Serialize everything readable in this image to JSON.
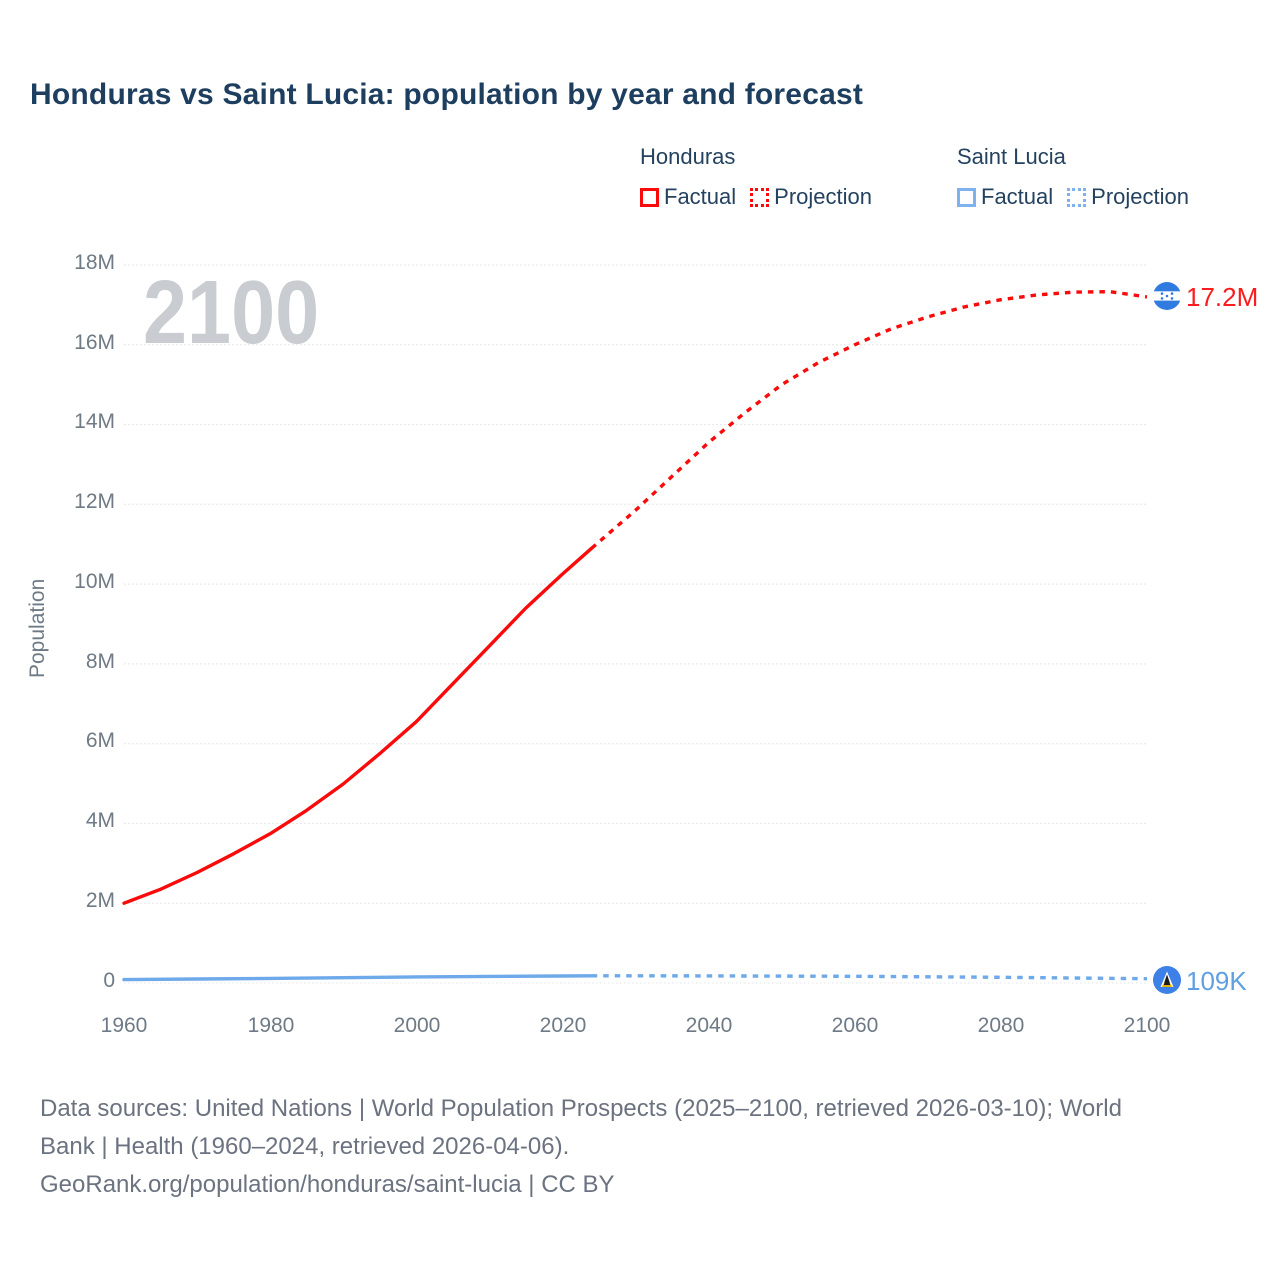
{
  "title": "Honduras vs Saint Lucia: population by year and forecast",
  "watermark": "2100",
  "legend": {
    "honduras": {
      "name": "Honduras",
      "factual_label": "Factual",
      "projection_label": "Projection"
    },
    "saint_lucia": {
      "name": "Saint Lucia",
      "factual_label": "Factual",
      "projection_label": "Projection"
    }
  },
  "colors": {
    "honduras_line": "#fa0a0a",
    "saint_lucia_line": "#6ea9ea",
    "honduras_label": "#fb1d1d",
    "saint_lucia_label": "#5f9fe2",
    "gridline": "#e3e5e7",
    "title_text": "#1d3e5e",
    "axis_text": "#6e7a85",
    "watermark_text": "#c9cdd1"
  },
  "end_labels": {
    "honduras": "17.2M",
    "saint_lucia": "109K"
  },
  "axes": {
    "y_title": "Population",
    "y_tick_labels": [
      "18M",
      "16M",
      "14M",
      "12M",
      "10M",
      "8M",
      "6M",
      "4M",
      "2M",
      "0"
    ],
    "x_tick_labels": [
      "1960",
      "1980",
      "2000",
      "2020",
      "2040",
      "2060",
      "2080",
      "2100"
    ]
  },
  "chart_data": {
    "type": "line",
    "title": "Honduras vs Saint Lucia: population by year and forecast",
    "xlabel": "",
    "ylabel": "Population",
    "unit": "millions of people",
    "xlim": [
      1960,
      2100
    ],
    "ylim_millions": [
      0,
      18
    ],
    "x_ticks": [
      1960,
      1980,
      2000,
      2020,
      2040,
      2060,
      2080,
      2100
    ],
    "y_gridlines_millions": [
      0,
      2,
      4,
      6,
      8,
      10,
      12,
      14,
      16,
      18
    ],
    "grid": true,
    "legend_position": "top-right",
    "series": [
      {
        "name": "Honduras Factual",
        "style": "solid",
        "color": "#fa0a0a",
        "points_year_millions": [
          [
            1960,
            2.0
          ],
          [
            1965,
            2.35
          ],
          [
            1970,
            2.77
          ],
          [
            1975,
            3.24
          ],
          [
            1980,
            3.74
          ],
          [
            1985,
            4.33
          ],
          [
            1990,
            4.99
          ],
          [
            1995,
            5.75
          ],
          [
            2000,
            6.55
          ],
          [
            2005,
            7.5
          ],
          [
            2010,
            8.45
          ],
          [
            2015,
            9.4
          ],
          [
            2020,
            10.25
          ],
          [
            2024,
            10.9
          ]
        ]
      },
      {
        "name": "Honduras Projection",
        "style": "dotted",
        "color": "#fa0a0a",
        "points_year_millions": [
          [
            2024,
            10.9
          ],
          [
            2030,
            11.85
          ],
          [
            2035,
            12.7
          ],
          [
            2040,
            13.55
          ],
          [
            2045,
            14.3
          ],
          [
            2050,
            15.0
          ],
          [
            2055,
            15.55
          ],
          [
            2060,
            16.0
          ],
          [
            2065,
            16.4
          ],
          [
            2070,
            16.7
          ],
          [
            2075,
            16.95
          ],
          [
            2080,
            17.13
          ],
          [
            2085,
            17.25
          ],
          [
            2090,
            17.32
          ],
          [
            2095,
            17.33
          ],
          [
            2100,
            17.2
          ]
        ]
      },
      {
        "name": "Saint Lucia Factual",
        "style": "solid",
        "color": "#6ea9ea",
        "points_year_millions": [
          [
            1960,
            0.086
          ],
          [
            1970,
            0.101
          ],
          [
            1980,
            0.115
          ],
          [
            1990,
            0.133
          ],
          [
            2000,
            0.153
          ],
          [
            2010,
            0.166
          ],
          [
            2020,
            0.176
          ],
          [
            2024,
            0.18
          ]
        ]
      },
      {
        "name": "Saint Lucia Projection",
        "style": "dotted",
        "color": "#6ea9ea",
        "points_year_millions": [
          [
            2024,
            0.18
          ],
          [
            2040,
            0.179
          ],
          [
            2060,
            0.167
          ],
          [
            2080,
            0.142
          ],
          [
            2100,
            0.109
          ]
        ]
      }
    ],
    "end_values": {
      "honduras_2100": "17.2M",
      "saint_lucia_2100": "109K"
    },
    "watermark": "2100"
  },
  "footer": {
    "line1": "Data sources: United Nations | World Population Prospects (2025–2100, retrieved 2026-03-10); World",
    "line2": "Bank | Health (1960–2024, retrieved 2026-04-06).",
    "line3": "GeoRank.org/population/honduras/saint-lucia | CC BY"
  }
}
